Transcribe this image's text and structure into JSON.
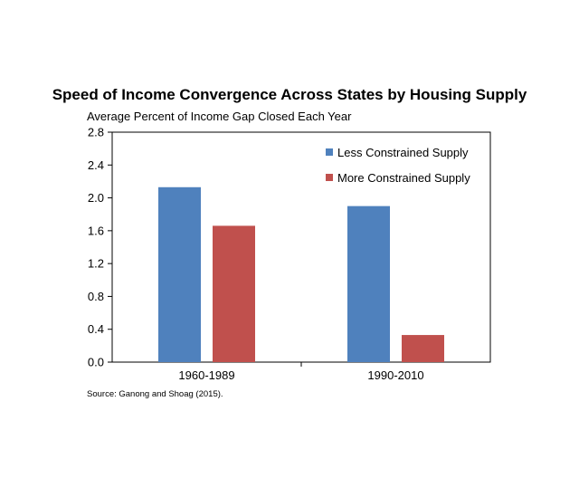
{
  "chart_data": {
    "type": "bar",
    "title": "Speed of Income Convergence Across States by Housing Supply",
    "subtitle": "Average Percent of Income Gap Closed Each Year",
    "categories": [
      "1960-1989",
      "1990-2010"
    ],
    "series": [
      {
        "name": "Less Constrained Supply",
        "color": "#4F81BD",
        "values": [
          2.13,
          1.9
        ]
      },
      {
        "name": "More Constrained Supply",
        "color": "#C0504D",
        "values": [
          1.66,
          0.33
        ]
      }
    ],
    "yticks": [
      "0.0",
      "0.4",
      "0.8",
      "1.2",
      "1.6",
      "2.0",
      "2.4",
      "2.8"
    ],
    "ylim": [
      0,
      2.8
    ],
    "xlabel": "",
    "ylabel": "",
    "grid": false,
    "legend_position": "top-right",
    "source": "Source: Ganong and Shoag (2015)."
  }
}
